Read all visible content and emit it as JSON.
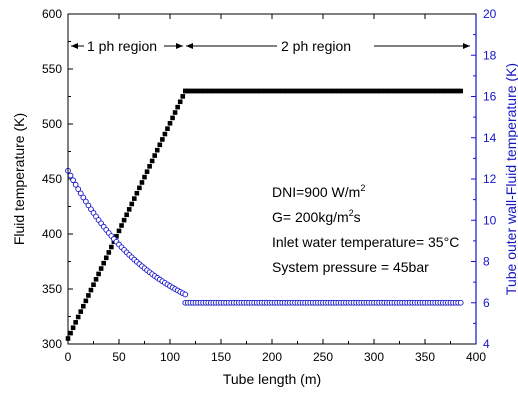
{
  "chart_data": {
    "type": "scatter",
    "xlabel": "Tube length (m)",
    "ylabel": "Fluid temperature (K)",
    "y2label": "Tube outer wall-Fluid temperature (K)",
    "xlim": [
      0,
      400
    ],
    "ylim": [
      300,
      600
    ],
    "y2lim": [
      4,
      20
    ],
    "xticks": [
      0,
      50,
      100,
      150,
      200,
      250,
      300,
      350,
      400
    ],
    "yticks": [
      300,
      350,
      400,
      450,
      500,
      550,
      600
    ],
    "y2ticks": [
      4,
      6,
      8,
      10,
      12,
      14,
      16,
      18,
      20
    ],
    "colors": {
      "left_axis": "#000000",
      "right_axis": "#1515c8"
    },
    "series": [
      {
        "axis": "left",
        "marker": "filled-square",
        "color": "#000000",
        "segments": [
          {
            "x": [
              0,
              115
            ],
            "y": [
              305,
              530
            ],
            "shape": "linear"
          },
          {
            "x": [
              115,
              385
            ],
            "y": [
              530,
              530
            ],
            "shape": "linear"
          }
        ]
      },
      {
        "axis": "right",
        "marker": "open-circle",
        "color": "#1515c8",
        "segments": [
          {
            "x": [
              0,
              115
            ],
            "y": [
              12.4,
              6.4
            ],
            "shape": "decay",
            "k": 0.0115
          },
          {
            "x": [
              115,
              385
            ],
            "y": [
              6.0,
              6.0
            ],
            "shape": "linear"
          }
        ]
      }
    ],
    "annotations": {
      "region1": "1 ph region",
      "region2": "2 ph region",
      "dni_prefix": "DNI=900 W/m",
      "dni_sup": "2",
      "g_prefix": "G= 200kg/m",
      "g_sup": "2",
      "g_suffix": "s",
      "inlet": "Inlet water temperature= 35°C",
      "pressure": "System pressure = 45bar"
    }
  }
}
